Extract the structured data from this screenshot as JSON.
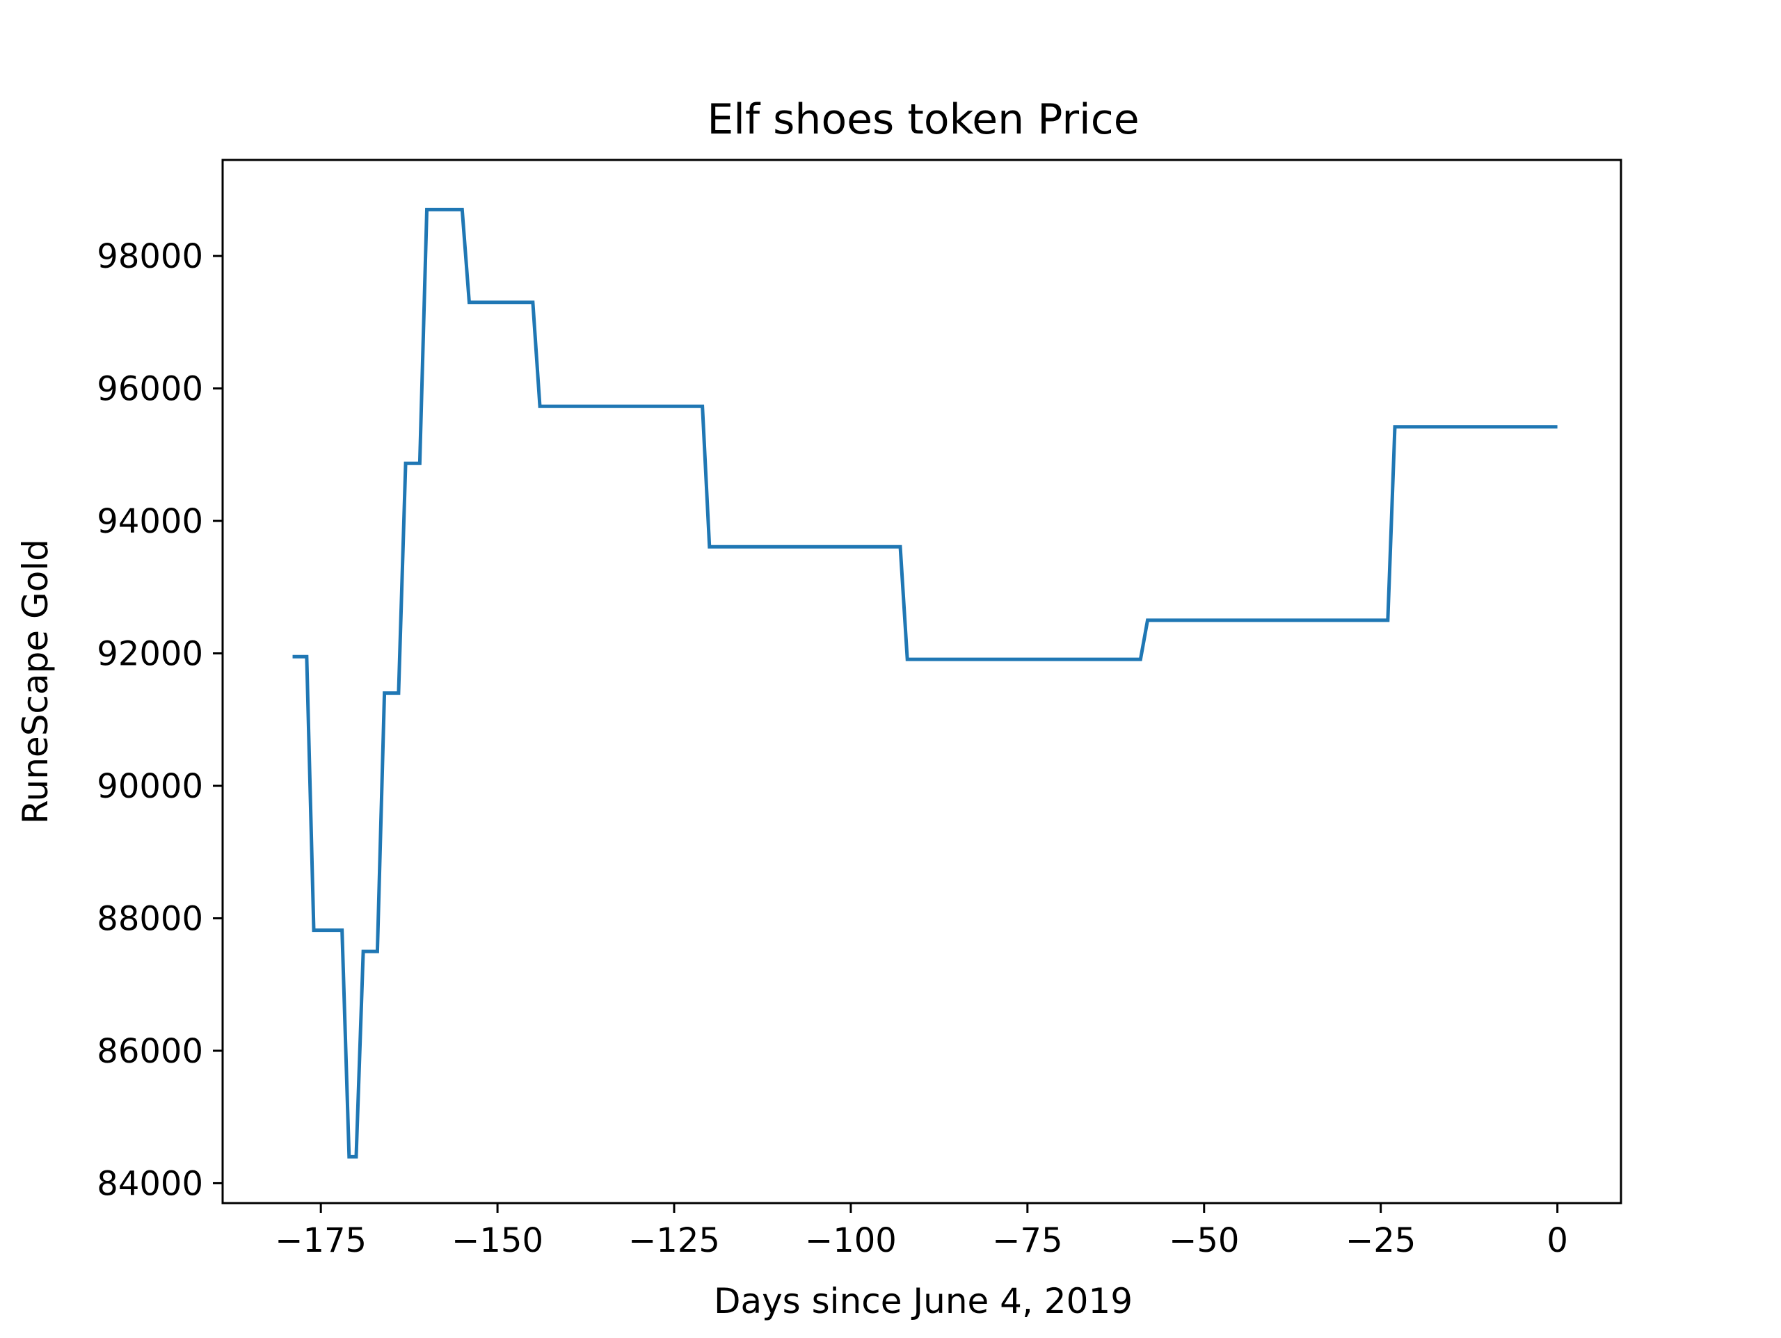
{
  "chart_data": {
    "type": "line",
    "title": "Elf shoes token Price",
    "xlabel": "Days since June 4, 2019",
    "ylabel": "RuneScape Gold",
    "xlim": [
      -188.9,
      9
    ],
    "ylim": [
      83700,
      99450
    ],
    "xticks": [
      -175,
      -150,
      -125,
      -100,
      -75,
      -50,
      -25,
      0
    ],
    "xtick_labels": [
      "−175",
      "−150",
      "−125",
      "−100",
      "−75",
      "−50",
      "−25",
      "0"
    ],
    "yticks": [
      84000,
      86000,
      88000,
      90000,
      92000,
      94000,
      96000,
      98000
    ],
    "ytick_labels": [
      "84000",
      "86000",
      "88000",
      "90000",
      "92000",
      "94000",
      "96000",
      "98000"
    ],
    "grid": false,
    "series": [
      {
        "color": "#1f77b4",
        "x": [
          -179,
          -178,
          -177,
          -176,
          -175,
          -174,
          -173,
          -172,
          -171,
          -170,
          -169,
          -168,
          -167,
          -166,
          -165,
          -164,
          -163,
          -162,
          -161,
          -160,
          -159,
          -158,
          -157,
          -156,
          -155,
          -154,
          -153,
          -152,
          -151,
          -150,
          -149,
          -148,
          -147,
          -146,
          -145,
          -144,
          -143,
          -122,
          -121,
          -120,
          -93,
          -92,
          -91,
          -59,
          -58,
          -57,
          -24,
          -23,
          -22,
          0
        ],
        "y": [
          91950,
          91950,
          91950,
          87820,
          87820,
          87820,
          87820,
          87820,
          84400,
          84400,
          87500,
          87500,
          87500,
          91400,
          91400,
          91400,
          94870,
          94870,
          94870,
          98700,
          98700,
          98700,
          98700,
          98700,
          98700,
          97300,
          97300,
          97300,
          97300,
          97300,
          97300,
          97300,
          97300,
          97300,
          97300,
          95730,
          95730,
          95730,
          95730,
          93610,
          93610,
          91910,
          91910,
          91910,
          92500,
          92500,
          92500,
          95420,
          95420,
          95420
        ]
      }
    ]
  }
}
